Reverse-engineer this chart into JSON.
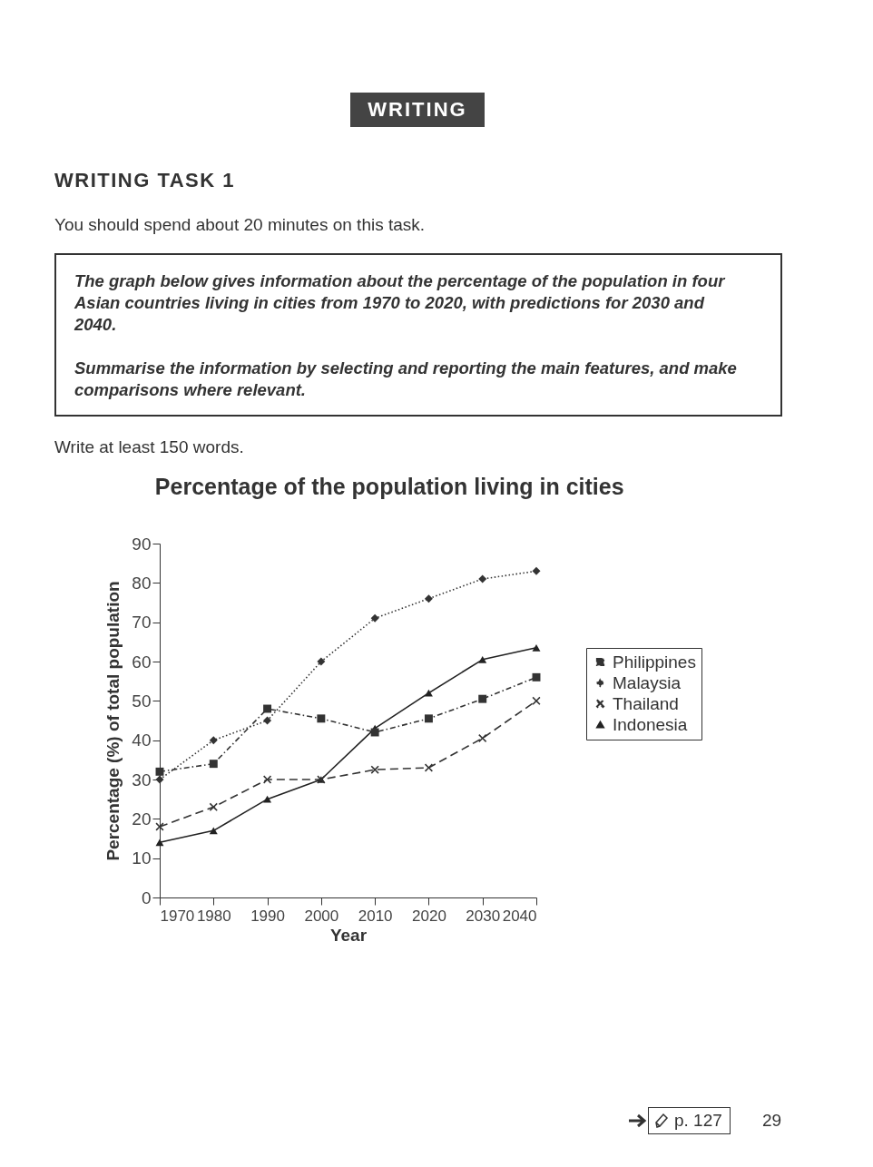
{
  "chart_data": {
    "type": "line",
    "title": "Percentage of the population living in cities",
    "xlabel": "Year",
    "ylabel": "Percentage (%) of total population",
    "x": [
      1970,
      1980,
      1990,
      2000,
      2010,
      2020,
      2030,
      2040
    ],
    "series": [
      {
        "name": "Philippines",
        "color": "#333333",
        "marker": "square",
        "line_style": "dashdot",
        "values": [
          32,
          34,
          48,
          45.5,
          42,
          45.5,
          50.5,
          56
        ]
      },
      {
        "name": "Malaysia",
        "color": "#333333",
        "marker": "diamond",
        "line_style": "dotted",
        "values": [
          30,
          40,
          45,
          60,
          71,
          76,
          81,
          83
        ]
      },
      {
        "name": "Thailand",
        "color": "#333333",
        "marker": "cross",
        "line_style": "dashed",
        "values": [
          18,
          23,
          30,
          30,
          32.5,
          33,
          40.5,
          50
        ]
      },
      {
        "name": "Indonesia",
        "color": "#222222",
        "marker": "triangle",
        "line_style": "solid",
        "values": [
          14,
          17,
          25,
          30,
          43,
          52,
          60.5,
          63.5
        ]
      }
    ],
    "xlim": [
      1970,
      2040
    ],
    "xticks": [
      1970,
      1980,
      1990,
      2000,
      2010,
      2020,
      2030,
      2040
    ],
    "ylim": [
      0,
      90
    ],
    "yticks": [
      0,
      10,
      20,
      30,
      40,
      50,
      60,
      70,
      80,
      90
    ],
    "grid": false,
    "legend": "right",
    "annotations": [
      "WRITING",
      "WRITING TASK 1",
      "You should spend about 20 minutes on this task.",
      "The graph below gives information about the percentage of the population in four Asian countries living in cities from 1970 to 2020, with predictions for 2030 and 2040.",
      "Summarise the information by selecting and reporting the main features, and make comparisons where relevant.",
      "Write at least 150 words.",
      "p. 127",
      "29"
    ]
  }
}
